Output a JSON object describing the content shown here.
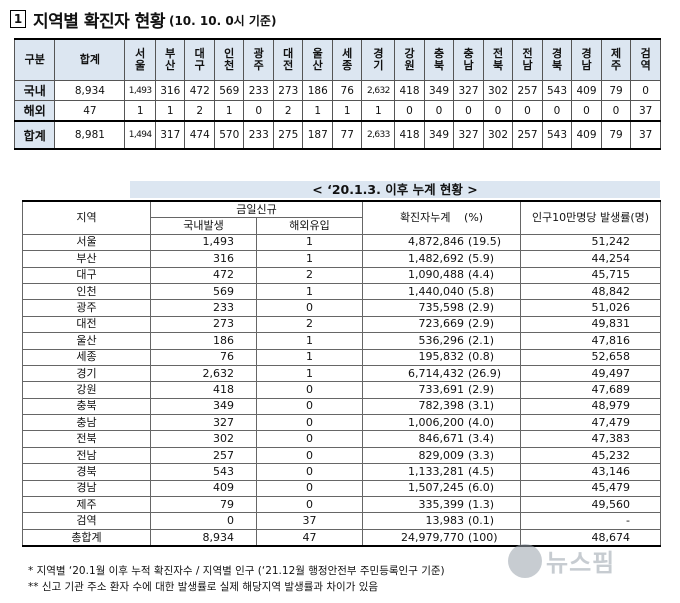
{
  "header": {
    "box_num": "1",
    "title": "지역별 확진자 현황",
    "date_note": "(10. 10. 0시 기준)"
  },
  "summary": {
    "label_col": "구분",
    "total_col": "합계",
    "regions": [
      "서울",
      "부산",
      "대구",
      "인천",
      "광주",
      "대전",
      "울산",
      "세종",
      "경기",
      "강원",
      "충북",
      "충남",
      "전북",
      "전남",
      "경북",
      "경남",
      "제주",
      "검역"
    ],
    "rows": [
      {
        "label": "국내",
        "total": "8,934",
        "values": [
          "1,493",
          "316",
          "472",
          "569",
          "233",
          "273",
          "186",
          "76",
          "2,632",
          "418",
          "349",
          "327",
          "302",
          "257",
          "543",
          "409",
          "79",
          "0"
        ]
      },
      {
        "label": "해외",
        "total": "47",
        "values": [
          "1",
          "1",
          "2",
          "1",
          "0",
          "2",
          "1",
          "1",
          "1",
          "0",
          "0",
          "0",
          "0",
          "0",
          "0",
          "0",
          "0",
          "37"
        ]
      },
      {
        "label": "합계",
        "total": "8,981",
        "values": [
          "1,494",
          "317",
          "474",
          "570",
          "233",
          "275",
          "187",
          "77",
          "2,633",
          "418",
          "349",
          "327",
          "302",
          "257",
          "543",
          "409",
          "79",
          "37"
        ]
      }
    ]
  },
  "cumulative": {
    "subtitle": "< ‘20.1.3. 이후 누계 현황 >",
    "headers": {
      "region": "지역",
      "today_new": "금일신규",
      "domestic": "국내발생",
      "overseas": "해외유입",
      "cumulative": "확진자누계",
      "pct": "(%)",
      "per100k": "인구10만명당 발생률(명)"
    },
    "rows": [
      {
        "region": "서울",
        "domestic": "1,493",
        "overseas": "1",
        "cum": "4,872,846",
        "pct": "(19.5)",
        "rate": "51,242"
      },
      {
        "region": "부산",
        "domestic": "316",
        "overseas": "1",
        "cum": "1,482,692",
        "pct": "(5.9)",
        "rate": "44,254"
      },
      {
        "region": "대구",
        "domestic": "472",
        "overseas": "2",
        "cum": "1,090,488",
        "pct": "(4.4)",
        "rate": "45,715"
      },
      {
        "region": "인천",
        "domestic": "569",
        "overseas": "1",
        "cum": "1,440,040",
        "pct": "(5.8)",
        "rate": "48,842"
      },
      {
        "region": "광주",
        "domestic": "233",
        "overseas": "0",
        "cum": "735,598",
        "pct": "(2.9)",
        "rate": "51,026"
      },
      {
        "region": "대전",
        "domestic": "273",
        "overseas": "2",
        "cum": "723,669",
        "pct": "(2.9)",
        "rate": "49,831"
      },
      {
        "region": "울산",
        "domestic": "186",
        "overseas": "1",
        "cum": "536,296",
        "pct": "(2.1)",
        "rate": "47,816"
      },
      {
        "region": "세종",
        "domestic": "76",
        "overseas": "1",
        "cum": "195,832",
        "pct": "(0.8)",
        "rate": "52,658"
      },
      {
        "region": "경기",
        "domestic": "2,632",
        "overseas": "1",
        "cum": "6,714,432",
        "pct": "(26.9)",
        "rate": "49,497"
      },
      {
        "region": "강원",
        "domestic": "418",
        "overseas": "0",
        "cum": "733,691",
        "pct": "(2.9)",
        "rate": "47,689"
      },
      {
        "region": "충북",
        "domestic": "349",
        "overseas": "0",
        "cum": "782,398",
        "pct": "(3.1)",
        "rate": "48,979"
      },
      {
        "region": "충남",
        "domestic": "327",
        "overseas": "0",
        "cum": "1,006,200",
        "pct": "(4.0)",
        "rate": "47,479"
      },
      {
        "region": "전북",
        "domestic": "302",
        "overseas": "0",
        "cum": "846,671",
        "pct": "(3.4)",
        "rate": "47,383"
      },
      {
        "region": "전남",
        "domestic": "257",
        "overseas": "0",
        "cum": "829,009",
        "pct": "(3.3)",
        "rate": "45,232"
      },
      {
        "region": "경북",
        "domestic": "543",
        "overseas": "0",
        "cum": "1,133,281",
        "pct": "(4.5)",
        "rate": "43,146"
      },
      {
        "region": "경남",
        "domestic": "409",
        "overseas": "0",
        "cum": "1,507,245",
        "pct": "(6.0)",
        "rate": "45,479"
      },
      {
        "region": "제주",
        "domestic": "79",
        "overseas": "0",
        "cum": "335,399",
        "pct": "(1.3)",
        "rate": "49,560"
      },
      {
        "region": "검역",
        "domestic": "0",
        "overseas": "37",
        "cum": "13,983",
        "pct": "(0.1)",
        "rate": "-"
      },
      {
        "region": "총합계",
        "domestic": "8,934",
        "overseas": "47",
        "cum": "24,979,770",
        "pct": "(100)",
        "rate": "48,674"
      }
    ]
  },
  "notes": [
    "* 지역별 ‘20.1월 이후 누적 확진자수 / 지역별 인구 (‘21.12월 행정안전부 주민등록인구 기준)",
    "** 신고 기관 주소 환자 수에 대한 발생률로 실제 해당지역 발생률과 차이가 있음"
  ],
  "watermark": "뉴스핌",
  "colors": {
    "header_fill": "#dce6f1"
  }
}
